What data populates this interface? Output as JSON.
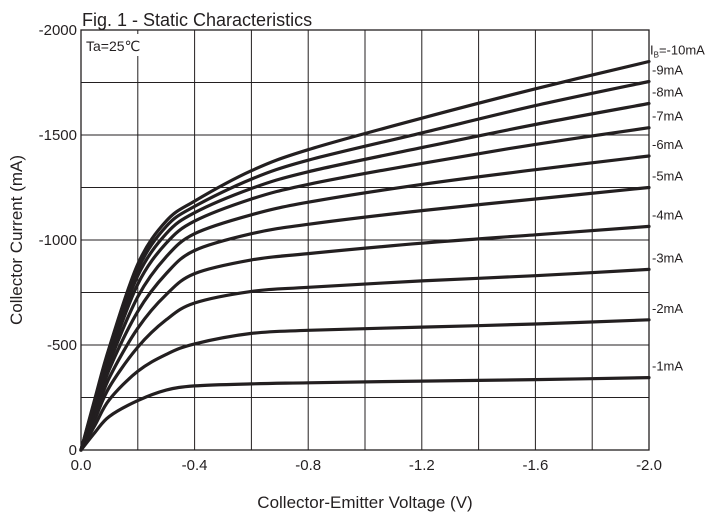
{
  "chart_data": {
    "type": "line",
    "title": "Fig. 1 - Static Characteristics",
    "condition": "Ta=25℃",
    "xlabel": "Collector-Emitter Voltage (V)",
    "ylabel": "Collector  Current (mA)",
    "xlim": [
      0,
      -2.0
    ],
    "ylim": [
      0,
      -2000
    ],
    "grid": true,
    "x_ticks": [
      {
        "value": 0,
        "label": "0.0"
      },
      {
        "value": -0.4,
        "label": "-0.4"
      },
      {
        "value": -0.8,
        "label": "-0.8"
      },
      {
        "value": -1.2,
        "label": "-1.2"
      },
      {
        "value": -1.6,
        "label": "-1.6"
      },
      {
        "value": -2.0,
        "label": "-2.0"
      }
    ],
    "y_ticks": [
      {
        "value": 0,
        "label": "0"
      },
      {
        "value": -500,
        "label": "-500"
      },
      {
        "value": -1000,
        "label": "-1000"
      },
      {
        "value": -1500,
        "label": "-1500"
      },
      {
        "value": -2000,
        "label": "-2000"
      }
    ],
    "series": [
      {
        "name": "-1mA",
        "x": [
          0,
          -0.05,
          -0.1,
          -0.2,
          -0.3,
          -0.4,
          -0.6,
          -0.8,
          -1.2,
          -1.6,
          -2.0
        ],
        "values": [
          0,
          -85,
          -160,
          -235,
          -285,
          -305,
          -315,
          -320,
          -328,
          -335,
          -345
        ]
      },
      {
        "name": "-2mA",
        "x": [
          0,
          -0.05,
          -0.1,
          -0.2,
          -0.3,
          -0.4,
          -0.6,
          -0.8,
          -1.2,
          -1.6,
          -2.0
        ],
        "values": [
          0,
          -120,
          -240,
          -375,
          -455,
          -505,
          -555,
          -570,
          -585,
          -600,
          -620
        ]
      },
      {
        "name": "-3mA",
        "x": [
          0,
          -0.05,
          -0.1,
          -0.2,
          -0.3,
          -0.4,
          -0.6,
          -0.8,
          -1.2,
          -1.6,
          -2.0
        ],
        "values": [
          0,
          -150,
          -300,
          -490,
          -620,
          -700,
          -755,
          -775,
          -805,
          -830,
          -860
        ]
      },
      {
        "name": "-4mA",
        "x": [
          0,
          -0.05,
          -0.1,
          -0.2,
          -0.3,
          -0.4,
          -0.6,
          -0.8,
          -1.2,
          -1.6,
          -2.0
        ],
        "values": [
          0,
          -170,
          -345,
          -580,
          -740,
          -840,
          -905,
          -935,
          -985,
          -1025,
          -1065
        ]
      },
      {
        "name": "-5mA",
        "x": [
          0,
          -0.05,
          -0.1,
          -0.2,
          -0.3,
          -0.4,
          -0.6,
          -0.8,
          -1.2,
          -1.6,
          -2.0
        ],
        "values": [
          0,
          -190,
          -385,
          -660,
          -840,
          -950,
          -1030,
          -1075,
          -1140,
          -1195,
          -1250
        ]
      },
      {
        "name": "-6mA",
        "x": [
          0,
          -0.05,
          -0.1,
          -0.2,
          -0.3,
          -0.4,
          -0.6,
          -0.8,
          -1.2,
          -1.6,
          -2.0
        ],
        "values": [
          0,
          -205,
          -415,
          -730,
          -920,
          -1030,
          -1120,
          -1180,
          -1265,
          -1335,
          -1400
        ]
      },
      {
        "name": "-7mA",
        "x": [
          0,
          -0.05,
          -0.1,
          -0.2,
          -0.3,
          -0.4,
          -0.6,
          -0.8,
          -1.2,
          -1.6,
          -2.0
        ],
        "values": [
          0,
          -220,
          -440,
          -790,
          -985,
          -1090,
          -1195,
          -1265,
          -1365,
          -1455,
          -1535
        ]
      },
      {
        "name": "-8mA",
        "x": [
          0,
          -0.05,
          -0.1,
          -0.2,
          -0.3,
          -0.4,
          -0.6,
          -0.8,
          -1.2,
          -1.6,
          -2.0
        ],
        "values": [
          0,
          -230,
          -460,
          -830,
          -1030,
          -1130,
          -1245,
          -1325,
          -1440,
          -1550,
          -1650
        ]
      },
      {
        "name": "-9mA",
        "x": [
          0,
          -0.05,
          -0.1,
          -0.2,
          -0.3,
          -0.4,
          -0.6,
          -0.8,
          -1.2,
          -1.6,
          -2.0
        ],
        "values": [
          0,
          -240,
          -475,
          -860,
          -1065,
          -1160,
          -1290,
          -1380,
          -1510,
          -1640,
          -1755
        ]
      },
      {
        "name": "-10mA",
        "x": [
          0,
          -0.05,
          -0.1,
          -0.2,
          -0.3,
          -0.4,
          -0.6,
          -0.8,
          -1.2,
          -1.6,
          -2.0
        ],
        "values": [
          0,
          -250,
          -490,
          -885,
          -1090,
          -1185,
          -1330,
          -1430,
          -1580,
          -1720,
          -1850
        ]
      }
    ],
    "series_label_prefix": {
      "symbol": "I",
      "subscript": "B",
      "text": "=-10mA"
    }
  }
}
